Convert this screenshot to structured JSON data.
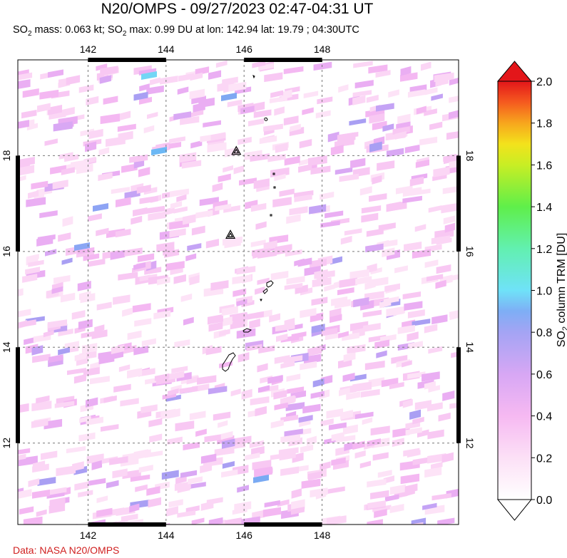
{
  "title": "N20/OMPS - 09/27/2023 02:47-04:31 UT",
  "subtitle": {
    "mass_label": "SO",
    "mass_sub": "2",
    "mass_text": " mass: 0.063 kt; SO",
    "max_sub": "2",
    "max_text": " max: 0.99 DU at lon: 142.94 lat: 19.79 ; 04:30UTC"
  },
  "credit": "Data: NASA N20/OMPS",
  "map": {
    "lon_range": [
      140.2,
      151.5
    ],
    "lat_range": [
      10.3,
      20.0
    ],
    "lon_ticks": [
      142,
      144,
      146,
      148
    ],
    "lat_ticks": [
      12,
      14,
      16,
      18
    ],
    "lon_tick_labels": [
      "142",
      "144",
      "146",
      "148"
    ],
    "lat_tick_labels": [
      "12",
      "14",
      "16",
      "18"
    ],
    "grid": "dashed",
    "max_marker": {
      "lon": 142.94,
      "lat": 19.79
    },
    "volcanoes": [
      {
        "lon": 145.8,
        "lat": 18.1
      },
      {
        "lon": 145.65,
        "lat": 16.35
      }
    ]
  },
  "colorbar": {
    "min": 0.0,
    "max": 2.0,
    "ticks": [
      "0.0",
      "0.2",
      "0.4",
      "0.6",
      "0.8",
      "1.0",
      "1.2",
      "1.4",
      "1.6",
      "1.8",
      "2.0"
    ],
    "label_main": "SO",
    "label_sub": "2",
    "label_rest": " column TRM [DU]",
    "colors": [
      "#ffffff",
      "#fdd6f5",
      "#f3a9f3",
      "#c9a0f5",
      "#8f9ff4",
      "#5fc4f7",
      "#6ff8f4",
      "#66f290",
      "#5ef03a",
      "#d6ef22",
      "#f7d61a",
      "#f6951e",
      "#f53d1f",
      "#e0141a"
    ]
  }
}
